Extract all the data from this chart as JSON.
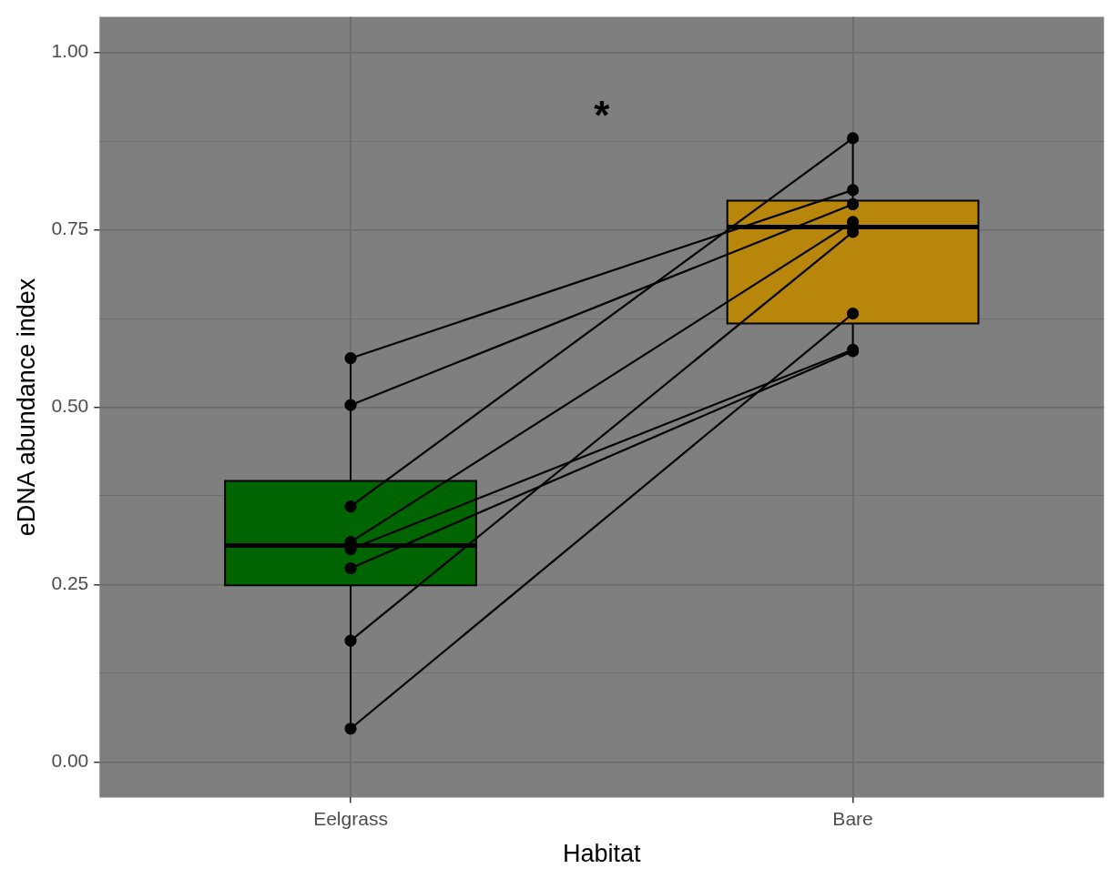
{
  "chart_data": {
    "type": "box",
    "xlabel": "Habitat",
    "ylabel": "eDNA abundance index",
    "categories": [
      "Eelgrass",
      "Bare"
    ],
    "colors": [
      "#006400",
      "#b8860b"
    ],
    "boxes": [
      {
        "low": 0.047,
        "q1": 0.249,
        "median": 0.305,
        "q3": 0.396,
        "high": 0.569
      },
      {
        "low": 0.579,
        "q1": 0.618,
        "median": 0.754,
        "q3": 0.791,
        "high": 0.879
      }
    ],
    "series": [
      {
        "type": "line",
        "x": [
          "Eelgrass",
          "Bare"
        ],
        "values": [
          0.569,
          0.806
        ],
        "color": "#000000"
      },
      {
        "type": "line",
        "x": [
          "Eelgrass",
          "Bare"
        ],
        "values": [
          0.503,
          0.786
        ],
        "color": "#000000"
      },
      {
        "type": "line",
        "x": [
          "Eelgrass",
          "Bare"
        ],
        "values": [
          0.36,
          0.879
        ],
        "color": "#000000"
      },
      {
        "type": "line",
        "x": [
          "Eelgrass",
          "Bare"
        ],
        "values": [
          0.31,
          0.761
        ],
        "color": "#000000"
      },
      {
        "type": "line",
        "x": [
          "Eelgrass",
          "Bare"
        ],
        "values": [
          0.3,
          0.581
        ],
        "color": "#000000"
      },
      {
        "type": "line",
        "x": [
          "Eelgrass",
          "Bare"
        ],
        "values": [
          0.273,
          0.579
        ],
        "color": "#000000"
      },
      {
        "type": "line",
        "x": [
          "Eelgrass",
          "Bare"
        ],
        "values": [
          0.171,
          0.747
        ],
        "color": "#000000"
      },
      {
        "type": "line",
        "x": [
          "Eelgrass",
          "Bare"
        ],
        "values": [
          0.047,
          0.632
        ],
        "color": "#000000"
      }
    ],
    "ylim": [
      -0.05,
      1.05
    ],
    "yticks": [
      {
        "value": 0,
        "label": "0.00"
      },
      {
        "value": 0.125,
        "label": null
      },
      {
        "value": 0.25,
        "label": "0.25"
      },
      {
        "value": 0.375,
        "label": null
      },
      {
        "value": 0.5,
        "label": "0.50"
      },
      {
        "value": 0.625,
        "label": null
      },
      {
        "value": 0.75,
        "label": "0.75"
      },
      {
        "value": 0.875,
        "label": null
      },
      {
        "value": 1,
        "label": "1.00"
      }
    ],
    "grid": true,
    "legend": false,
    "marker": "circle",
    "line_style": "solid",
    "annotations": [
      "*"
    ]
  }
}
